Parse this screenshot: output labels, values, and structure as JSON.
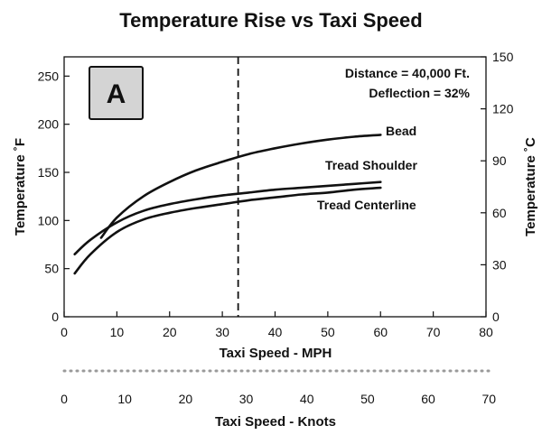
{
  "chart_data": {
    "type": "line",
    "title": "Temperature Rise vs Taxi Speed",
    "xlabel": "Taxi Speed - MPH",
    "xlabel_secondary": "Taxi Speed - Knots",
    "ylabel": "Temperature ˚F",
    "ylabel_secondary": "Temperature ˚C",
    "xlim": [
      0,
      80
    ],
    "ylim": [
      0,
      270
    ],
    "ylim_secondary": [
      0,
      150
    ],
    "x_ticks": [
      "0",
      "10",
      "20",
      "30",
      "40",
      "50",
      "60",
      "70",
      "80"
    ],
    "y_ticks": [
      "0",
      "50",
      "100",
      "150",
      "200",
      "250"
    ],
    "y_ticks_secondary": [
      "0",
      "30",
      "60",
      "90",
      "120",
      "150"
    ],
    "knots_ticks": [
      "0",
      "10",
      "20",
      "30",
      "40",
      "50",
      "60",
      "70"
    ],
    "grid": false,
    "badge": "A",
    "annotations": [
      "Distance = 40,000 Ft.",
      "Deflection = 32%"
    ],
    "reference_line": {
      "x": 33,
      "style": "dashed"
    },
    "series": [
      {
        "name": "Bead",
        "x": [
          7,
          10,
          15,
          20,
          25,
          30,
          35,
          40,
          45,
          50,
          55,
          60
        ],
        "y": [
          82,
          103,
          125,
          140,
          152,
          161,
          169,
          175,
          180,
          184,
          187,
          189
        ]
      },
      {
        "name": "Tread Shoulder",
        "x": [
          2,
          5,
          10,
          15,
          20,
          25,
          30,
          35,
          40,
          45,
          50,
          55,
          60
        ],
        "y": [
          65,
          80,
          98,
          110,
          117,
          122,
          126,
          129,
          132,
          134,
          136,
          138,
          140
        ]
      },
      {
        "name": "Tread Centerline",
        "x": [
          2,
          5,
          10,
          15,
          20,
          25,
          30,
          35,
          40,
          45,
          50,
          55,
          60
        ],
        "y": [
          45,
          65,
          88,
          101,
          108,
          113,
          117,
          121,
          124,
          127,
          129,
          132,
          134
        ]
      }
    ]
  },
  "colors": {
    "line": "#111111",
    "badge_fill": "#d4d4d4",
    "dotted_divider": "#9a9a9a"
  }
}
